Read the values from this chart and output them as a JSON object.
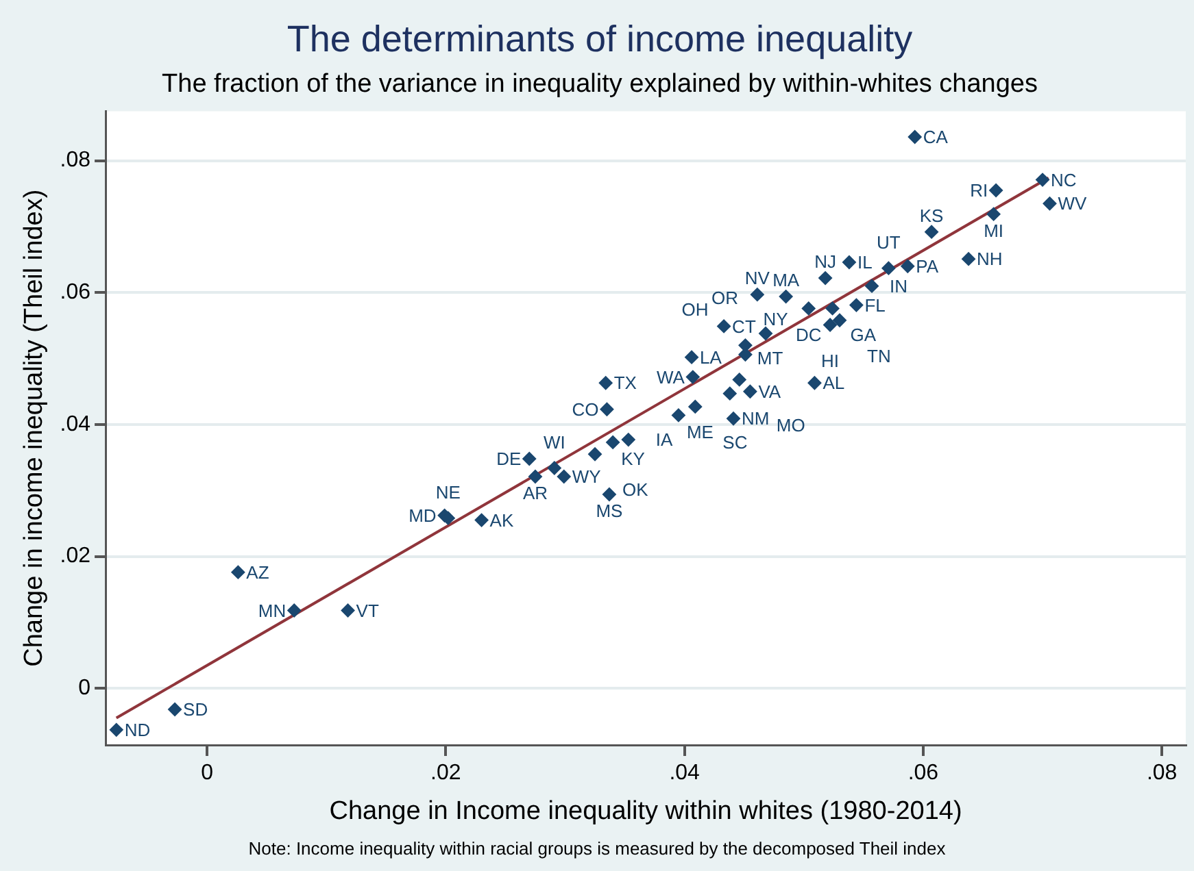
{
  "chart_data": {
    "type": "scatter",
    "title": "The determinants of income inequality",
    "subtitle": "The fraction of the variance in inequality explained by within-whites changes",
    "xlabel": "Change in Income inequality within whites (1980-2014)",
    "ylabel": "Change in income inequality (Theil index)",
    "xlim": [
      -0.0085,
      0.082
    ],
    "ylim": [
      -0.0086,
      0.0875
    ],
    "xticks": [
      0,
      {
        "value": 0.02,
        "label": ".02"
      },
      {
        "value": 0.04,
        "label": ".04"
      },
      {
        "value": 0.06,
        "label": ".06"
      },
      {
        "value": 0.08,
        "label": ".08"
      }
    ],
    "yticks": [
      0,
      {
        "value": 0.02,
        "label": ".02"
      },
      {
        "value": 0.04,
        "label": ".04"
      },
      {
        "value": 0.06,
        "label": ".06"
      },
      {
        "value": 0.08,
        "label": ".08"
      }
    ],
    "grid": "y",
    "legend": false,
    "series": [
      {
        "color": "#1a476f",
        "marker": "diamond",
        "x": [
          -0.0076,
          -0.0027,
          0.0026,
          0.0073,
          0.0118,
          0.0199,
          0.0202,
          0.023,
          0.027,
          0.0275,
          0.0291,
          0.0299,
          0.0325,
          0.034,
          0.0353,
          0.0337,
          0.0334,
          0.0335,
          0.0395,
          0.0406,
          0.0407,
          0.0409,
          0.0441,
          0.0438,
          0.0455,
          0.0446,
          0.0433,
          0.0451,
          0.0451,
          0.0468,
          0.0461,
          0.0485,
          0.0504,
          0.0524,
          0.0544,
          0.0522,
          0.053,
          0.0518,
          0.0538,
          0.0557,
          0.0571,
          0.0587,
          0.0607,
          0.0638,
          0.0661,
          0.0659,
          0.07,
          0.0706,
          0.0593,
          0.0509
        ],
        "values": [
          -0.0063,
          -0.0032,
          0.0176,
          0.0118,
          0.0118,
          0.0262,
          0.0258,
          0.0255,
          0.0348,
          0.0321,
          0.0334,
          0.0321,
          0.0355,
          0.0373,
          0.0377,
          0.0294,
          0.0463,
          0.0423,
          0.0414,
          0.0502,
          0.0472,
          0.0427,
          0.0409,
          0.0447,
          0.045,
          0.0468,
          0.0549,
          0.0506,
          0.052,
          0.0538,
          0.0597,
          0.0594,
          0.0576,
          0.0576,
          0.0581,
          0.0551,
          0.0558,
          0.0622,
          0.0646,
          0.061,
          0.0637,
          0.064,
          0.0692,
          0.0651,
          0.0755,
          0.0719,
          0.0771,
          0.0735,
          0.0836,
          0.0463
        ]
      },
      {
        "type": "line",
        "color": "#90353b",
        "marker": "none",
        "x": [
          -0.0076,
          0.0705
        ],
        "values": [
          -0.0045,
          0.0774
        ]
      }
    ],
    "annotations": [
      {
        "text": "ND",
        "x": -0.0076,
        "y": -0.0063
      },
      {
        "text": "SD",
        "x": -0.0027,
        "y": -0.0032
      },
      {
        "text": "AZ",
        "x": 0.0026,
        "y": 0.0176
      },
      {
        "text": "MN",
        "x": 0.0073,
        "y": 0.0118
      },
      {
        "text": "VT",
        "x": 0.0118,
        "y": 0.0118
      },
      {
        "text": "MD",
        "x": 0.0199,
        "y": 0.0262
      },
      {
        "text": "NE",
        "x": 0.0202,
        "y": 0.0258
      },
      {
        "text": "AK",
        "x": 0.023,
        "y": 0.0255
      },
      {
        "text": "DE",
        "x": 0.027,
        "y": 0.0348
      },
      {
        "text": "AR",
        "x": 0.0275,
        "y": 0.0321
      },
      {
        "text": "WI",
        "x": 0.0291,
        "y": 0.0334
      },
      {
        "text": "WY",
        "x": 0.0299,
        "y": 0.0321
      },
      {
        "text": "OK",
        "x": 0.0325,
        "y": 0.0355
      },
      {
        "text": "KY",
        "x": 0.034,
        "y": 0.0373
      },
      {
        "text": "IA",
        "x": 0.0353,
        "y": 0.0377
      },
      {
        "text": "MS",
        "x": 0.0337,
        "y": 0.0294
      },
      {
        "text": "TX",
        "x": 0.0334,
        "y": 0.0463
      },
      {
        "text": "CO",
        "x": 0.0335,
        "y": 0.0423
      },
      {
        "text": "ME",
        "x": 0.0395,
        "y": 0.0414
      },
      {
        "text": "LA",
        "x": 0.0406,
        "y": 0.0502
      },
      {
        "text": "WA",
        "x": 0.0407,
        "y": 0.0472
      },
      {
        "text": "SC",
        "x": 0.0409,
        "y": 0.0427
      },
      {
        "text": "NM",
        "x": 0.0441,
        "y": 0.0409
      },
      {
        "text": "MT",
        "x": 0.0438,
        "y": 0.0447
      },
      {
        "text": "VA",
        "x": 0.0455,
        "y": 0.045
      },
      {
        "text": "MO",
        "x": 0.0446,
        "y": 0.0468
      },
      {
        "text": "CT",
        "x": 0.0433,
        "y": 0.0549
      },
      {
        "text": "OH",
        "x": 0.0451,
        "y": 0.0506
      },
      {
        "text": "NY",
        "x": 0.0451,
        "y": 0.052
      },
      {
        "text": "OR",
        "x": 0.0468,
        "y": 0.0538
      },
      {
        "text": "NV",
        "x": 0.0461,
        "y": 0.0597
      },
      {
        "text": "MA",
        "x": 0.0485,
        "y": 0.0594
      },
      {
        "text": "DC",
        "x": 0.0504,
        "y": 0.0576
      },
      {
        "text": "GA",
        "x": 0.0524,
        "y": 0.0576
      },
      {
        "text": "FL",
        "x": 0.0544,
        "y": 0.0581
      },
      {
        "text": "HI",
        "x": 0.0522,
        "y": 0.0551
      },
      {
        "text": "TN",
        "x": 0.053,
        "y": 0.0558
      },
      {
        "text": "NJ",
        "x": 0.0518,
        "y": 0.0622
      },
      {
        "text": "IL",
        "x": 0.0538,
        "y": 0.0646
      },
      {
        "text": "IN",
        "x": 0.0557,
        "y": 0.061
      },
      {
        "text": "UT",
        "x": 0.0571,
        "y": 0.0637
      },
      {
        "text": "PA",
        "x": 0.0587,
        "y": 0.064
      },
      {
        "text": "KS",
        "x": 0.0607,
        "y": 0.0692
      },
      {
        "text": "NH",
        "x": 0.0638,
        "y": 0.0651
      },
      {
        "text": "RI",
        "x": 0.0661,
        "y": 0.0755
      },
      {
        "text": "MI",
        "x": 0.0659,
        "y": 0.0719
      },
      {
        "text": "NC",
        "x": 0.07,
        "y": 0.0771
      },
      {
        "text": "WV",
        "x": 0.0706,
        "y": 0.0735
      },
      {
        "text": "CA",
        "x": 0.0593,
        "y": 0.0836
      },
      {
        "text": "AL",
        "x": 0.0509,
        "y": 0.0463
      },
      "Note: Income inequality within racial groups is measured by the decomposed Theil index"
    ]
  }
}
